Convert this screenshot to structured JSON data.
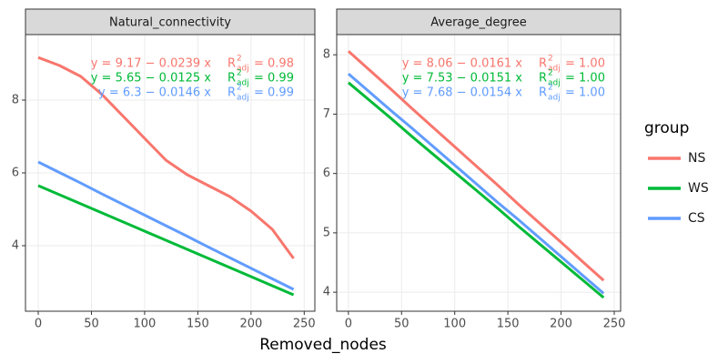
{
  "chart_data": [
    {
      "type": "line",
      "title": "Natural_connectivity",
      "x": [
        0,
        20,
        40,
        60,
        80,
        100,
        120,
        140,
        160,
        180,
        200,
        220,
        240
      ],
      "xlim": [
        -12,
        260
      ],
      "xticks": [
        0,
        50,
        100,
        150,
        200,
        250
      ],
      "ylim": [
        2.2,
        9.8
      ],
      "yticks": [
        4,
        6,
        8
      ],
      "grid": true,
      "series": [
        {
          "name": "NS",
          "color": "#f8766d",
          "values": [
            9.17,
            8.95,
            8.65,
            8.15,
            7.55,
            6.95,
            6.35,
            5.95,
            5.65,
            5.35,
            4.95,
            4.45,
            3.65
          ],
          "equation": "y = 9.17 − 0.0239 x",
          "r2": {
            "symbol": "R",
            "sup": "2",
            "sub": "adj",
            "value": "= 0.98"
          }
        },
        {
          "name": "WS",
          "color": "#00ba38",
          "values": [
            5.65,
            5.4,
            5.15,
            4.9,
            4.65,
            4.4,
            4.15,
            3.9,
            3.65,
            3.4,
            3.15,
            2.9,
            2.65
          ],
          "equation": "y = 5.65 − 0.0125 x",
          "r2": {
            "symbol": "R",
            "sup": "2",
            "sub": "adj",
            "value": "= 0.99"
          }
        },
        {
          "name": "CS",
          "color": "#619cff",
          "values": [
            6.3,
            6.01,
            5.72,
            5.42,
            5.13,
            4.84,
            4.55,
            4.26,
            3.96,
            3.67,
            3.38,
            3.09,
            2.8
          ],
          "equation": "y = 6.3 − 0.0146 x",
          "r2": {
            "symbol": "R",
            "sup": "2",
            "sub": "adj",
            "value": "= 0.99"
          }
        }
      ]
    },
    {
      "type": "line",
      "title": "Average_degree",
      "x": [
        0,
        20,
        40,
        60,
        80,
        100,
        120,
        140,
        160,
        180,
        200,
        220,
        240
      ],
      "xlim": [
        -11,
        256
      ],
      "xticks": [
        0,
        50,
        100,
        150,
        200,
        250
      ],
      "ylim": [
        3.68,
        8.34
      ],
      "yticks": [
        4,
        5,
        6,
        7,
        8
      ],
      "grid": true,
      "series": [
        {
          "name": "NS",
          "color": "#f8766d",
          "values": [
            8.06,
            7.74,
            7.42,
            7.09,
            6.77,
            6.45,
            6.13,
            5.81,
            5.48,
            5.16,
            4.84,
            4.52,
            4.2
          ],
          "equation": "y = 8.06 − 0.0161 x",
          "r2": {
            "symbol": "R",
            "sup": "2",
            "sub": "adj",
            "value": "= 1.00"
          }
        },
        {
          "name": "WS",
          "color": "#00ba38",
          "values": [
            7.53,
            7.23,
            6.93,
            6.62,
            6.32,
            6.02,
            5.72,
            5.42,
            5.11,
            4.81,
            4.51,
            4.21,
            3.91
          ],
          "equation": "y = 7.53 − 0.0151 x",
          "r2": {
            "symbol": "R",
            "sup": "2",
            "sub": "adj",
            "value": "= 1.00"
          }
        },
        {
          "name": "CS",
          "color": "#619cff",
          "values": [
            7.68,
            7.37,
            7.06,
            6.76,
            6.45,
            6.14,
            5.83,
            5.52,
            5.22,
            4.91,
            4.6,
            4.29,
            3.98
          ],
          "equation": "y = 7.68 − 0.0154 x",
          "r2": {
            "symbol": "R",
            "sup": "2",
            "sub": "adj",
            "value": "= 1.00"
          }
        }
      ]
    }
  ],
  "x_label": "Removed_nodes",
  "legend_title": "group"
}
